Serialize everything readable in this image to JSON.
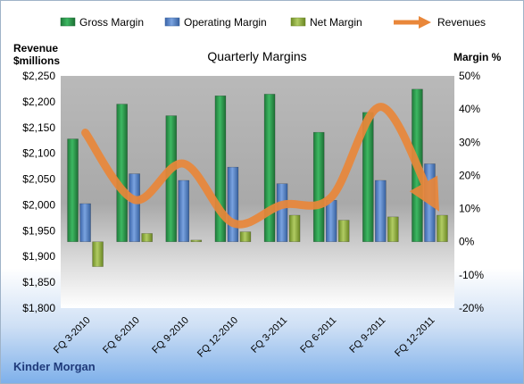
{
  "chart_data": {
    "type": "bar",
    "title": "Quarterly Margins",
    "company": "Kinder Morgan",
    "ylabel_left": [
      "Revenue",
      "$millions"
    ],
    "ylabel_right": "Margin %",
    "categories": [
      "FQ 3-2010",
      "FQ 6-2010",
      "FQ 9-2010",
      "FQ 12-2010",
      "FQ 3-2011",
      "FQ 6-2011",
      "FQ 9-2011",
      "FQ 12-2011"
    ],
    "left_axis": {
      "min": 1800,
      "max": 2250,
      "step": 50,
      "ticks": [
        "$1,800",
        "$1,850",
        "$1,900",
        "$1,950",
        "$2,000",
        "$2,050",
        "$2,100",
        "$2,150",
        "$2,200",
        "$2,250"
      ]
    },
    "right_axis": {
      "min": -20,
      "max": 50,
      "step": 10,
      "ticks": [
        "-20%",
        "-10%",
        "0%",
        "10%",
        "20%",
        "30%",
        "40%",
        "50%"
      ]
    },
    "series": [
      {
        "name": "Gross Margin",
        "axis": "right",
        "kind": "bar",
        "color": "#2e9b4f",
        "values": [
          31,
          41.5,
          38,
          44,
          44.5,
          33,
          39,
          46
        ]
      },
      {
        "name": "Operating Margin",
        "axis": "right",
        "kind": "bar",
        "color": "#4f7fc7",
        "values": [
          11.5,
          20.5,
          18.5,
          22.5,
          17.5,
          12.5,
          18.5,
          23.5
        ]
      },
      {
        "name": "Net Margin",
        "axis": "right",
        "kind": "bar",
        "color": "#8faf3c",
        "values": [
          -7.5,
          2.5,
          0.5,
          3,
          8,
          6.5,
          7.5,
          8
        ]
      },
      {
        "name": "Revenues",
        "axis": "left",
        "kind": "line",
        "color": "#e9873a",
        "values": [
          2140,
          2010,
          2080,
          1965,
          2000,
          2015,
          2190,
          2020
        ]
      }
    ],
    "legend_position": "top",
    "grid": false
  }
}
